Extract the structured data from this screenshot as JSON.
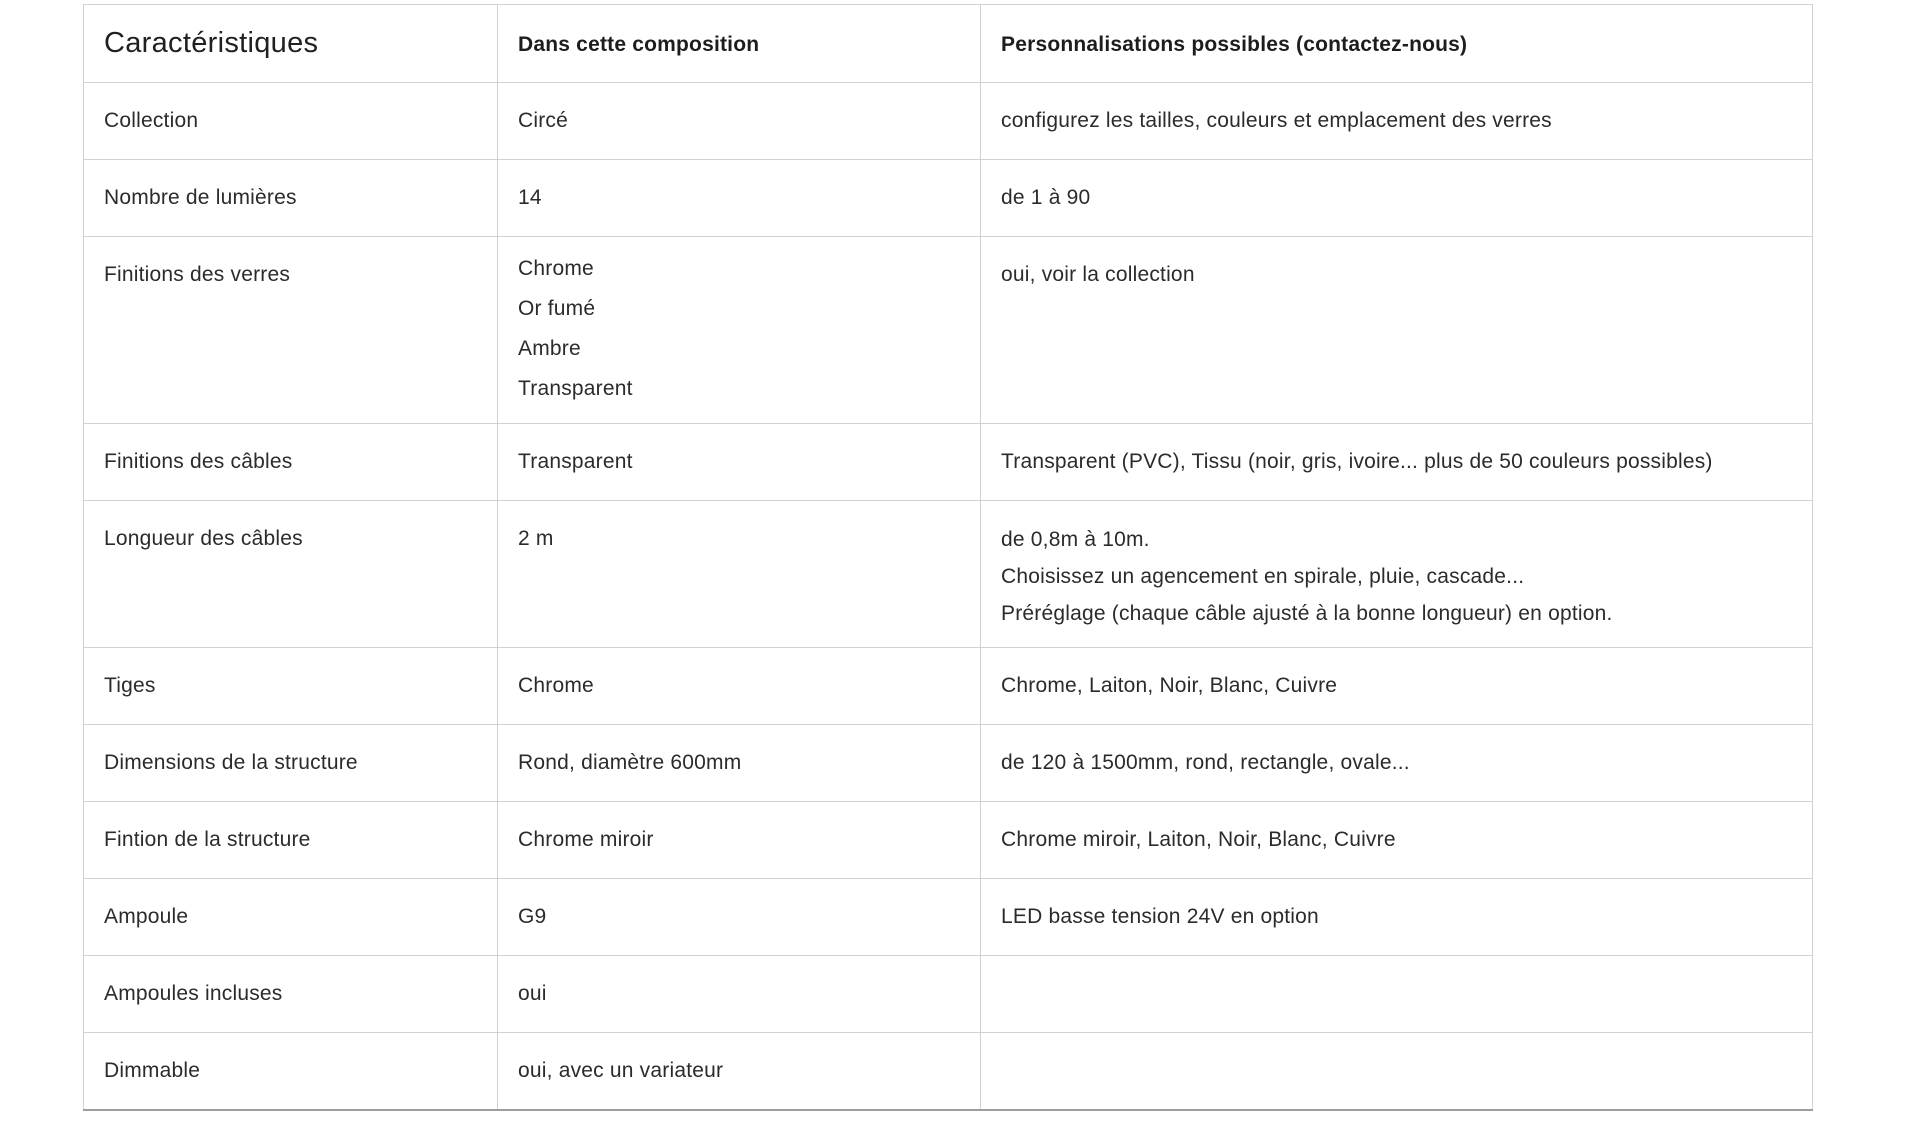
{
  "table": {
    "headers": {
      "col1": "Caractéristiques",
      "col2": "Dans cette composition",
      "col3": "Personnalisations possibles (contactez-nous)"
    },
    "rows": [
      {
        "label": "Collection",
        "composition": [
          "Circé"
        ],
        "perso": [
          "configurez les tailles, couleurs et emplacement des verres"
        ]
      },
      {
        "label": "Nombre de lumières",
        "composition": [
          "14"
        ],
        "perso": [
          "de 1 à 90"
        ]
      },
      {
        "label": "Finitions des verres",
        "composition": [
          "Chrome",
          "Or fumé",
          "Ambre",
          "Transparent"
        ],
        "perso": [
          "oui, voir la collection"
        ]
      },
      {
        "label": "Finitions des câbles",
        "composition": [
          "Transparent"
        ],
        "perso": [
          "Transparent (PVC), Tissu (noir, gris, ivoire... plus de 50 couleurs possibles)"
        ]
      },
      {
        "label": "Longueur des câbles",
        "composition": [
          "2 m"
        ],
        "perso": [
          "de 0,8m à 10m.",
          "Choisissez un agencement en spirale, pluie, cascade...",
          "Préréglage (chaque câble ajusté à la bonne longueur) en option."
        ]
      },
      {
        "label": "Tiges",
        "composition": [
          "Chrome"
        ],
        "perso": [
          "Chrome, Laiton, Noir, Blanc, Cuivre"
        ]
      },
      {
        "label": "Dimensions de la structure",
        "composition": [
          "Rond, diamètre 600mm"
        ],
        "perso": [
          "de 120 à 1500mm, rond, rectangle, ovale..."
        ]
      },
      {
        "label": "Fintion de la structure",
        "composition": [
          "Chrome miroir"
        ],
        "perso": [
          "Chrome miroir, Laiton, Noir, Blanc, Cuivre"
        ]
      },
      {
        "label": "Ampoule",
        "composition": [
          "G9"
        ],
        "perso": [
          "LED basse tension 24V en option"
        ]
      },
      {
        "label": "Ampoules incluses",
        "composition": [
          "oui"
        ],
        "perso": []
      },
      {
        "label": "Dimmable",
        "composition": [
          "oui, avec un variateur"
        ],
        "perso": []
      }
    ],
    "colors": {
      "page_background": "#ffffff",
      "border": "#d2d2d2",
      "bottom_border": "#9e9e9e",
      "body_text": "#2b2b2b",
      "heading_text": "#1d1d1d"
    }
  }
}
